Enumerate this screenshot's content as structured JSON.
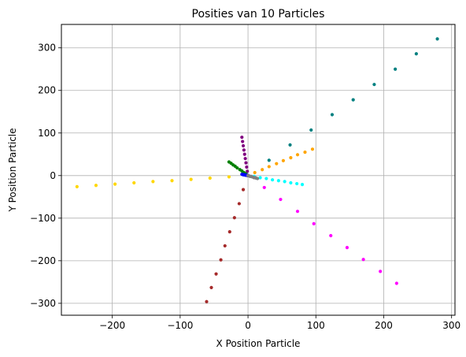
{
  "chart_data": {
    "type": "scatter",
    "title": "Posities van 10 Particles",
    "xlabel": "X Position Particle",
    "ylabel": "Y Position Particle",
    "xlim": [
      -275,
      305
    ],
    "ylim": [
      -328,
      355
    ],
    "x_ticks": [
      -200,
      -100,
      0,
      100,
      200,
      300
    ],
    "y_ticks": [
      -300,
      -200,
      -100,
      0,
      100,
      200,
      300
    ],
    "grid": true,
    "series": [
      {
        "color": "#008080",
        "points": [
          [
            0,
            0
          ],
          [
            31,
            36
          ],
          [
            62,
            72
          ],
          [
            93,
            107
          ],
          [
            124,
            143
          ],
          [
            155,
            178
          ],
          [
            186,
            214
          ],
          [
            217,
            250
          ],
          [
            248,
            286
          ],
          [
            279,
            321
          ]
        ]
      },
      {
        "color": "#ffd700",
        "points": [
          [
            0,
            0
          ],
          [
            -28,
            -3
          ],
          [
            -56,
            -6
          ],
          [
            -84,
            -9
          ],
          [
            -112,
            -12
          ],
          [
            -140,
            -14
          ],
          [
            -168,
            -17
          ],
          [
            -196,
            -20
          ],
          [
            -224,
            -23
          ],
          [
            -252,
            -26
          ]
        ]
      },
      {
        "color": "#ffa500",
        "points": [
          [
            0,
            0
          ],
          [
            10,
            7
          ],
          [
            21,
            14
          ],
          [
            31,
            21
          ],
          [
            42,
            28
          ],
          [
            52,
            35
          ],
          [
            63,
            42
          ],
          [
            73,
            49
          ],
          [
            84,
            55
          ],
          [
            95,
            62
          ]
        ]
      },
      {
        "color": "#800080",
        "points": [
          [
            0,
            0
          ],
          [
            -1,
            10
          ],
          [
            -2,
            20
          ],
          [
            -3,
            30
          ],
          [
            -4,
            40
          ],
          [
            -5,
            50
          ],
          [
            -6,
            60
          ],
          [
            -7,
            70
          ],
          [
            -8,
            80
          ],
          [
            -9,
            90
          ]
        ]
      },
      {
        "color": "#008000",
        "points": [
          [
            0,
            0
          ],
          [
            -3,
            4
          ],
          [
            -6,
            7
          ],
          [
            -9,
            11
          ],
          [
            -12,
            14
          ],
          [
            -16,
            18
          ],
          [
            -19,
            22
          ],
          [
            -22,
            25
          ],
          [
            -25,
            29
          ],
          [
            -28,
            32
          ]
        ]
      },
      {
        "color": "#00ffff",
        "points": [
          [
            0,
            0
          ],
          [
            9,
            -2
          ],
          [
            18,
            -5
          ],
          [
            27,
            -7
          ],
          [
            36,
            -10
          ],
          [
            45,
            -12
          ],
          [
            54,
            -14
          ],
          [
            63,
            -17
          ],
          [
            72,
            -19
          ],
          [
            80,
            -21
          ]
        ]
      },
      {
        "color": "#ff00ff",
        "points": [
          [
            0,
            0
          ],
          [
            24,
            -28
          ],
          [
            48,
            -56
          ],
          [
            73,
            -84
          ],
          [
            97,
            -113
          ],
          [
            122,
            -141
          ],
          [
            146,
            -169
          ],
          [
            170,
            -197
          ],
          [
            195,
            -225
          ],
          [
            219,
            -253
          ]
        ]
      },
      {
        "color": "#a52a2a",
        "points": [
          [
            0,
            0
          ],
          [
            -7,
            -33
          ],
          [
            -13,
            -66
          ],
          [
            -20,
            -99
          ],
          [
            -27,
            -132
          ],
          [
            -34,
            -165
          ],
          [
            -40,
            -198
          ],
          [
            -47,
            -231
          ],
          [
            -54,
            -263
          ],
          [
            -61,
            -296
          ]
        ]
      },
      {
        "color": "#0000ff",
        "points": [
          [
            0,
            0
          ],
          [
            -1,
            0
          ],
          [
            -2,
            1
          ],
          [
            -3,
            1
          ],
          [
            -4,
            1
          ],
          [
            -5,
            2
          ],
          [
            -6,
            2
          ],
          [
            -7,
            2
          ],
          [
            -8,
            3
          ],
          [
            -9,
            3
          ]
        ]
      },
      {
        "color": "#808080",
        "points": [
          [
            0,
            0
          ],
          [
            2,
            -1
          ],
          [
            3,
            -2
          ],
          [
            5,
            -2
          ],
          [
            6,
            -3
          ],
          [
            8,
            -4
          ],
          [
            9,
            -5
          ],
          [
            11,
            -5
          ],
          [
            12,
            -6
          ],
          [
            14,
            -7
          ]
        ]
      }
    ]
  }
}
